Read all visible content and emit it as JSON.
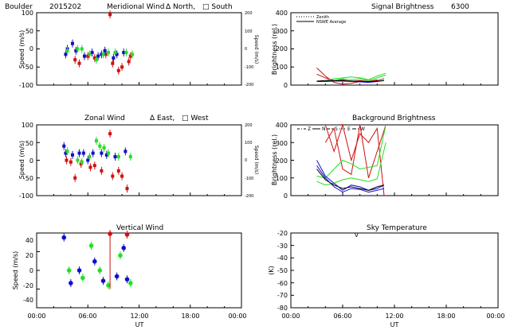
{
  "figure": {
    "header": {
      "site": "Boulder",
      "date": "2015202"
    },
    "x_ticks": [
      "00:00",
      "06:00",
      "12:00",
      "18:00",
      "00:00"
    ],
    "x_label": "UT",
    "colors": {
      "red": "#d01010",
      "green": "#22e022",
      "blue": "#1010c8",
      "black": "#000000"
    }
  },
  "chart_data": [
    {
      "id": "meridional",
      "type": "scatter",
      "title": "Meridional Wind",
      "legend_text": [
        "Δ North,",
        "□ South"
      ],
      "xlabel": "UT",
      "ylabel": "Speed (m/s)",
      "y2label": "Speed (m/s)",
      "xlim": [
        0,
        24
      ],
      "ylim": [
        -100,
        100
      ],
      "yticks": [
        "100",
        "50",
        "0",
        "-50",
        "-100"
      ],
      "y2ticks": [
        "200",
        "100",
        "0",
        "-100",
        "-200"
      ],
      "series": [
        {
          "color": "red",
          "points": [
            [
              4.5,
              -30
            ],
            [
              5.0,
              -40
            ],
            [
              6.0,
              -20
            ],
            [
              6.8,
              -25
            ],
            [
              8.1,
              -15
            ],
            [
              8.6,
              95
            ],
            [
              8.9,
              -40
            ],
            [
              9.6,
              -60
            ],
            [
              10.0,
              -50
            ],
            [
              10.8,
              -35
            ],
            [
              11.0,
              -20
            ]
          ]
        },
        {
          "color": "blue",
          "points": [
            [
              3.4,
              -15
            ],
            [
              3.6,
              0
            ],
            [
              4.2,
              15
            ],
            [
              4.6,
              -5
            ],
            [
              5.6,
              -20
            ],
            [
              6.5,
              -10
            ],
            [
              7.2,
              -20
            ],
            [
              7.6,
              -15
            ],
            [
              8.0,
              -5
            ],
            [
              9.0,
              -25
            ],
            [
              9.4,
              -15
            ],
            [
              10.2,
              -10
            ]
          ]
        },
        {
          "color": "green",
          "points": [
            [
              3.6,
              -5
            ],
            [
              4.8,
              0
            ],
            [
              5.3,
              0
            ],
            [
              6.2,
              -15
            ],
            [
              7.0,
              -30
            ],
            [
              7.8,
              -15
            ],
            [
              8.4,
              -10
            ],
            [
              9.2,
              -10
            ],
            [
              10.5,
              -10
            ],
            [
              11.2,
              -15
            ]
          ]
        }
      ]
    },
    {
      "id": "signal",
      "type": "line",
      "title": "Signal Brightness",
      "title_right": "6300",
      "ylabel": "Brightness (rel.)",
      "xlim": [
        0,
        24
      ],
      "ylim": [
        0,
        400
      ],
      "yticks": [
        "400",
        "300",
        "200",
        "100",
        "0"
      ],
      "legend": [
        "Zenith",
        "NSWE Average"
      ],
      "lines": [
        {
          "color": "red",
          "points": [
            [
              3.0,
              95
            ],
            [
              4.0,
              50
            ],
            [
              5.0,
              15
            ],
            [
              6.0,
              5
            ],
            [
              7.0,
              10
            ],
            [
              8.0,
              20
            ],
            [
              9.0,
              15
            ],
            [
              10.0,
              25
            ],
            [
              10.8,
              35
            ]
          ]
        },
        {
          "color": "red",
          "points": [
            [
              3.0,
              60
            ],
            [
              4.0,
              40
            ],
            [
              5.0,
              25
            ],
            [
              6.0,
              30
            ],
            [
              7.0,
              20
            ],
            [
              8.0,
              25
            ],
            [
              9.0,
              20
            ],
            [
              10.0,
              30
            ]
          ]
        },
        {
          "color": "green",
          "points": [
            [
              4.0,
              25
            ],
            [
              5.0,
              35
            ],
            [
              6.0,
              40
            ],
            [
              7.0,
              45
            ],
            [
              8.0,
              40
            ],
            [
              9.0,
              30
            ],
            [
              10.0,
              50
            ],
            [
              11.0,
              65
            ]
          ]
        },
        {
          "color": "green",
          "points": [
            [
              4.0,
              20
            ],
            [
              5.0,
              25
            ],
            [
              6.0,
              35
            ],
            [
              7.0,
              30
            ],
            [
              8.0,
              35
            ],
            [
              9.0,
              25
            ],
            [
              10.0,
              40
            ],
            [
              11.0,
              55
            ]
          ]
        },
        {
          "color": "blue",
          "points": [
            [
              3.0,
              20
            ],
            [
              4.0,
              20
            ],
            [
              5.0,
              22
            ],
            [
              6.0,
              22
            ],
            [
              7.0,
              20
            ],
            [
              8.0,
              18
            ],
            [
              9.0,
              15
            ],
            [
              10.0,
              20
            ],
            [
              10.8,
              25
            ]
          ]
        },
        {
          "color": "black",
          "points": [
            [
              3.0,
              22
            ],
            [
              4.0,
              25
            ],
            [
              5.0,
              25
            ],
            [
              6.0,
              25
            ],
            [
              7.0,
              23
            ],
            [
              8.0,
              22
            ],
            [
              9.0,
              20
            ],
            [
              10.0,
              22
            ],
            [
              10.8,
              24
            ]
          ]
        }
      ]
    },
    {
      "id": "zonal",
      "type": "scatter",
      "title": "Zonal Wind",
      "legend_text": [
        "Δ East,",
        "□ West"
      ],
      "xlabel": "UT",
      "ylabel": "Speed (m/s)",
      "y2label": "Speed (m/s)",
      "xlim": [
        0,
        24
      ],
      "ylim": [
        -100,
        100
      ],
      "yticks": [
        "100",
        "50",
        "0",
        "-50",
        "-100"
      ],
      "y2ticks": [
        "200",
        "100",
        "0",
        "-100",
        "-200"
      ],
      "series": [
        {
          "color": "red",
          "points": [
            [
              3.5,
              0
            ],
            [
              4.0,
              -5
            ],
            [
              4.5,
              -50
            ],
            [
              5.2,
              -10
            ],
            [
              6.3,
              -20
            ],
            [
              6.8,
              -15
            ],
            [
              7.6,
              -30
            ],
            [
              8.6,
              75
            ],
            [
              8.9,
              -45
            ],
            [
              9.6,
              -30
            ],
            [
              10.0,
              -45
            ],
            [
              10.6,
              -80
            ]
          ]
        },
        {
          "color": "blue",
          "points": [
            [
              3.2,
              40
            ],
            [
              3.4,
              20
            ],
            [
              4.2,
              15
            ],
            [
              5.0,
              20
            ],
            [
              5.5,
              20
            ],
            [
              6.0,
              0
            ],
            [
              6.6,
              20
            ],
            [
              7.6,
              20
            ],
            [
              8.2,
              15
            ],
            [
              9.2,
              10
            ],
            [
              10.4,
              25
            ]
          ]
        },
        {
          "color": "green",
          "points": [
            [
              3.6,
              25
            ],
            [
              4.8,
              0
            ],
            [
              5.3,
              -5
            ],
            [
              6.2,
              10
            ],
            [
              7.0,
              55
            ],
            [
              7.4,
              40
            ],
            [
              7.9,
              35
            ],
            [
              8.4,
              20
            ],
            [
              9.6,
              10
            ],
            [
              11.0,
              10
            ]
          ]
        }
      ]
    },
    {
      "id": "background",
      "type": "line",
      "title": "Background Brightness",
      "ylabel": "Brightness (rel.)",
      "xlim": [
        0,
        24
      ],
      "ylim": [
        0,
        400
      ],
      "yticks": [
        "400",
        "300",
        "200",
        "100",
        "0"
      ],
      "legend": [
        "Z",
        "N",
        "S",
        "E",
        "W"
      ],
      "lines": [
        {
          "color": "red",
          "points": [
            [
              4.0,
              400
            ],
            [
              5.0,
              250
            ],
            [
              6.0,
              400
            ],
            [
              7.0,
              200
            ],
            [
              8.0,
              350
            ],
            [
              9.0,
              300
            ],
            [
              10.0,
              380
            ],
            [
              10.8,
              0
            ]
          ]
        },
        {
          "color": "red",
          "points": [
            [
              4.0,
              300
            ],
            [
              5.0,
              380
            ],
            [
              6.0,
              150
            ],
            [
              7.0,
              120
            ],
            [
              8.0,
              400
            ],
            [
              9.0,
              100
            ],
            [
              10.0,
              250
            ],
            [
              11.0,
              400
            ]
          ]
        },
        {
          "color": "green",
          "points": [
            [
              3.0,
              110
            ],
            [
              4.0,
              100
            ],
            [
              5.0,
              150
            ],
            [
              6.0,
              200
            ],
            [
              7.0,
              180
            ],
            [
              8.0,
              150
            ],
            [
              9.0,
              160
            ],
            [
              10.0,
              170
            ],
            [
              11.0,
              400
            ]
          ]
        },
        {
          "color": "green",
          "points": [
            [
              3.0,
              80
            ],
            [
              4.0,
              60
            ],
            [
              5.0,
              70
            ],
            [
              6.0,
              90
            ],
            [
              7.0,
              100
            ],
            [
              8.0,
              90
            ],
            [
              9.0,
              80
            ],
            [
              10.0,
              95
            ],
            [
              11.0,
              300
            ]
          ]
        },
        {
          "color": "blue",
          "points": [
            [
              3.0,
              200
            ],
            [
              4.0,
              110
            ],
            [
              5.0,
              70
            ],
            [
              6.0,
              30
            ],
            [
              7.0,
              60
            ],
            [
              8.0,
              50
            ],
            [
              9.0,
              30
            ],
            [
              10.0,
              40
            ],
            [
              10.8,
              60
            ]
          ]
        },
        {
          "color": "blue",
          "points": [
            [
              3.0,
              170
            ],
            [
              4.0,
              100
            ],
            [
              5.0,
              50
            ],
            [
              6.0,
              20
            ],
            [
              7.0,
              40
            ],
            [
              8.0,
              35
            ],
            [
              9.0,
              20
            ],
            [
              10.0,
              30
            ],
            [
              10.8,
              40
            ]
          ]
        },
        {
          "color": "black",
          "points": [
            [
              3.0,
              150
            ],
            [
              4.0,
              90
            ],
            [
              5.0,
              60
            ],
            [
              6.0,
              40
            ],
            [
              7.0,
              50
            ],
            [
              8.0,
              40
            ],
            [
              9.0,
              30
            ],
            [
              10.0,
              50
            ],
            [
              10.8,
              60
            ]
          ]
        }
      ]
    },
    {
      "id": "vertical",
      "type": "scatter",
      "title": "Vertical Wind",
      "xlabel": "UT",
      "ylabel": "Speed (m/s)",
      "xlim": [
        0,
        24
      ],
      "ylim": [
        -50,
        50
      ],
      "yticks": [
        "40",
        "20",
        "0",
        "-20",
        "-40"
      ],
      "series": [
        {
          "color": "red",
          "points": [
            [
              8.6,
              50
            ],
            [
              10.6,
              48
            ]
          ]
        },
        {
          "color": "blue",
          "points": [
            [
              3.2,
              44
            ],
            [
              4.0,
              -17
            ],
            [
              5.0,
              0
            ],
            [
              6.8,
              12
            ],
            [
              7.8,
              -14
            ],
            [
              9.4,
              -8
            ],
            [
              10.2,
              30
            ],
            [
              10.6,
              -12
            ]
          ]
        },
        {
          "color": "green",
          "points": [
            [
              3.8,
              0
            ],
            [
              5.4,
              -10
            ],
            [
              6.4,
              33
            ],
            [
              7.4,
              0
            ],
            [
              8.4,
              -20
            ],
            [
              9.8,
              20
            ],
            [
              11.0,
              -17
            ]
          ]
        }
      ]
    },
    {
      "id": "sky",
      "type": "scatter",
      "title": "Sky Temperature",
      "xlabel": "UT",
      "ylabel": "(K)",
      "xlim": [
        0,
        24
      ],
      "ylim": [
        -80,
        -20
      ],
      "yticks": [
        "-20",
        "-30",
        "-40",
        "-50",
        "-60",
        "-70",
        "-80"
      ],
      "series": [
        {
          "color": "black",
          "marker": "v",
          "points": [
            [
              7.6,
              -20.5
            ]
          ]
        }
      ]
    }
  ]
}
